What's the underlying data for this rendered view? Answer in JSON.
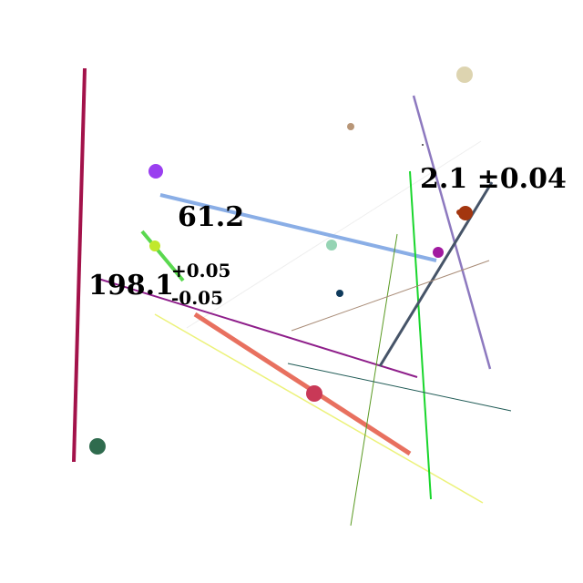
{
  "labels": {
    "value_61": "61.2",
    "value_198": "198.1",
    "value_198_plus": "+0.05",
    "value_198_minus": "-0.05",
    "value_2_1": "2.1 ±0.04"
  },
  "colors": {
    "background": "#ffffff",
    "crimson_line": "#a3124a",
    "blue_line": "#8aaee6",
    "purple_line": "#8e1e8a",
    "salmon_line": "#e8705f",
    "yellow_line": "#ecf27a",
    "green_line": "#19d62c",
    "olive_line": "#5a9a22",
    "lavender_line": "#8d79bf",
    "slate_line": "#465468",
    "tan_line": "#a88b76",
    "teal_line": "#1f5a55",
    "lime_line": "#5ad84f",
    "violet_dot": "#9a3ff0",
    "lime_dot": "#c1e82c",
    "mint_dot": "#96d4b4",
    "navy_dot": "#0f3a5c",
    "magenta_dot": "#a11aa0",
    "rust_dot": "#a3360f",
    "tan_dot": "#b89677",
    "beige_dot": "#ddd4b0",
    "rose_dot": "#c93957",
    "forest_dot": "#2f6b4e"
  }
}
